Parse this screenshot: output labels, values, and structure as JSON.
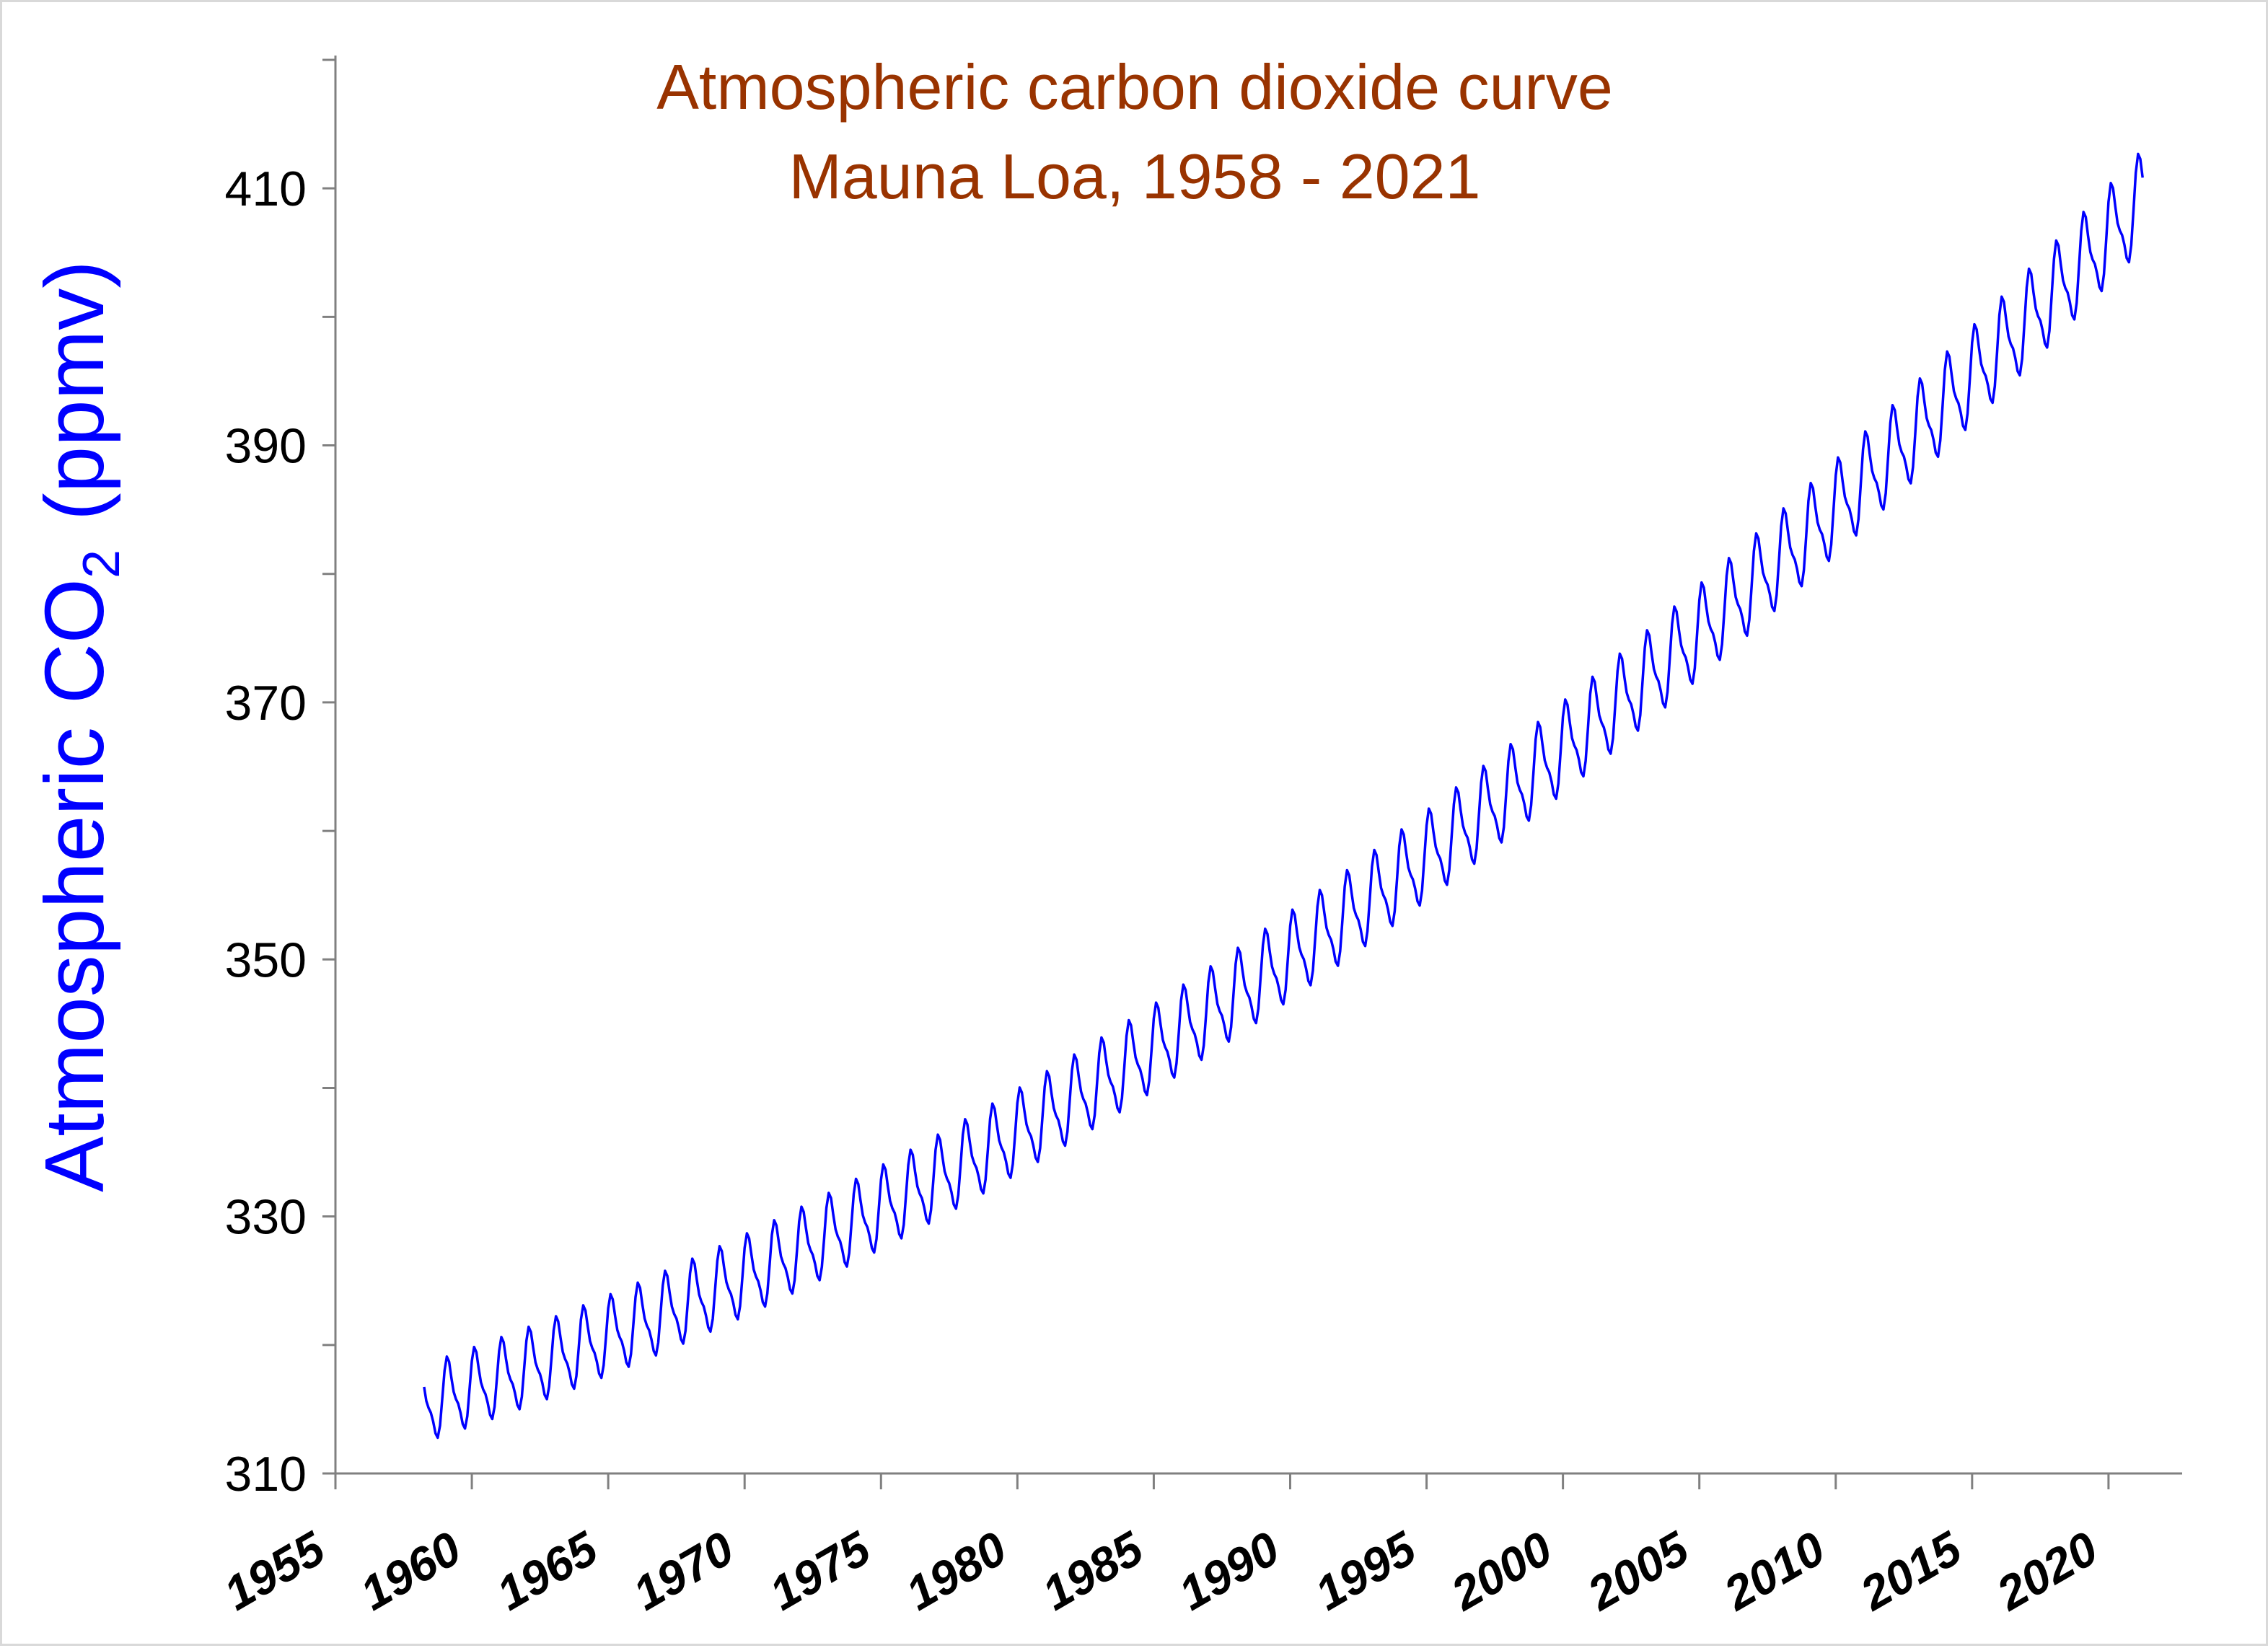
{
  "chart_data": {
    "type": "line",
    "title": "Atmospheric carbon dioxide curve",
    "subtitle": "Mauna Loa, 1958 - 2021",
    "ylabel": "Atmospheric CO",
    "ylabel_subscript": "2",
    "ylabel_unit": "(ppmv)",
    "xlabel": "",
    "xlim": [
      1955,
      2022.7
    ],
    "ylim": [
      310,
      420
    ],
    "x_ticks": [
      1955,
      1960,
      1965,
      1970,
      1975,
      1980,
      1985,
      1990,
      1995,
      2000,
      2005,
      2010,
      2015,
      2020
    ],
    "y_ticks_labeled": [
      310,
      330,
      350,
      370,
      390,
      410
    ],
    "y_ticks_minor": [
      320,
      340,
      360,
      380,
      400,
      420
    ],
    "grid": false,
    "legend": "none",
    "series": [
      {
        "x_start": 1958.25,
        "x_step": 0.08333333,
        "trend": {
          "base_year": 1958.25,
          "base_value": 315.3,
          "linear_per_year": 0.7,
          "quadratic": 0.0125
        },
        "seasonal_amplitude": [
          [
            1958,
            2.6
          ],
          [
            2021,
            3.3
          ]
        ],
        "x_end": 2021.33,
        "color": "#0000ff"
      }
    ],
    "annotations": []
  },
  "colors": {
    "title": "#993300",
    "ylabel": "#0000ff",
    "line": "#0000ff",
    "axis": "#808080",
    "tick_text": "#000000",
    "frame": "#d9d9d9"
  }
}
